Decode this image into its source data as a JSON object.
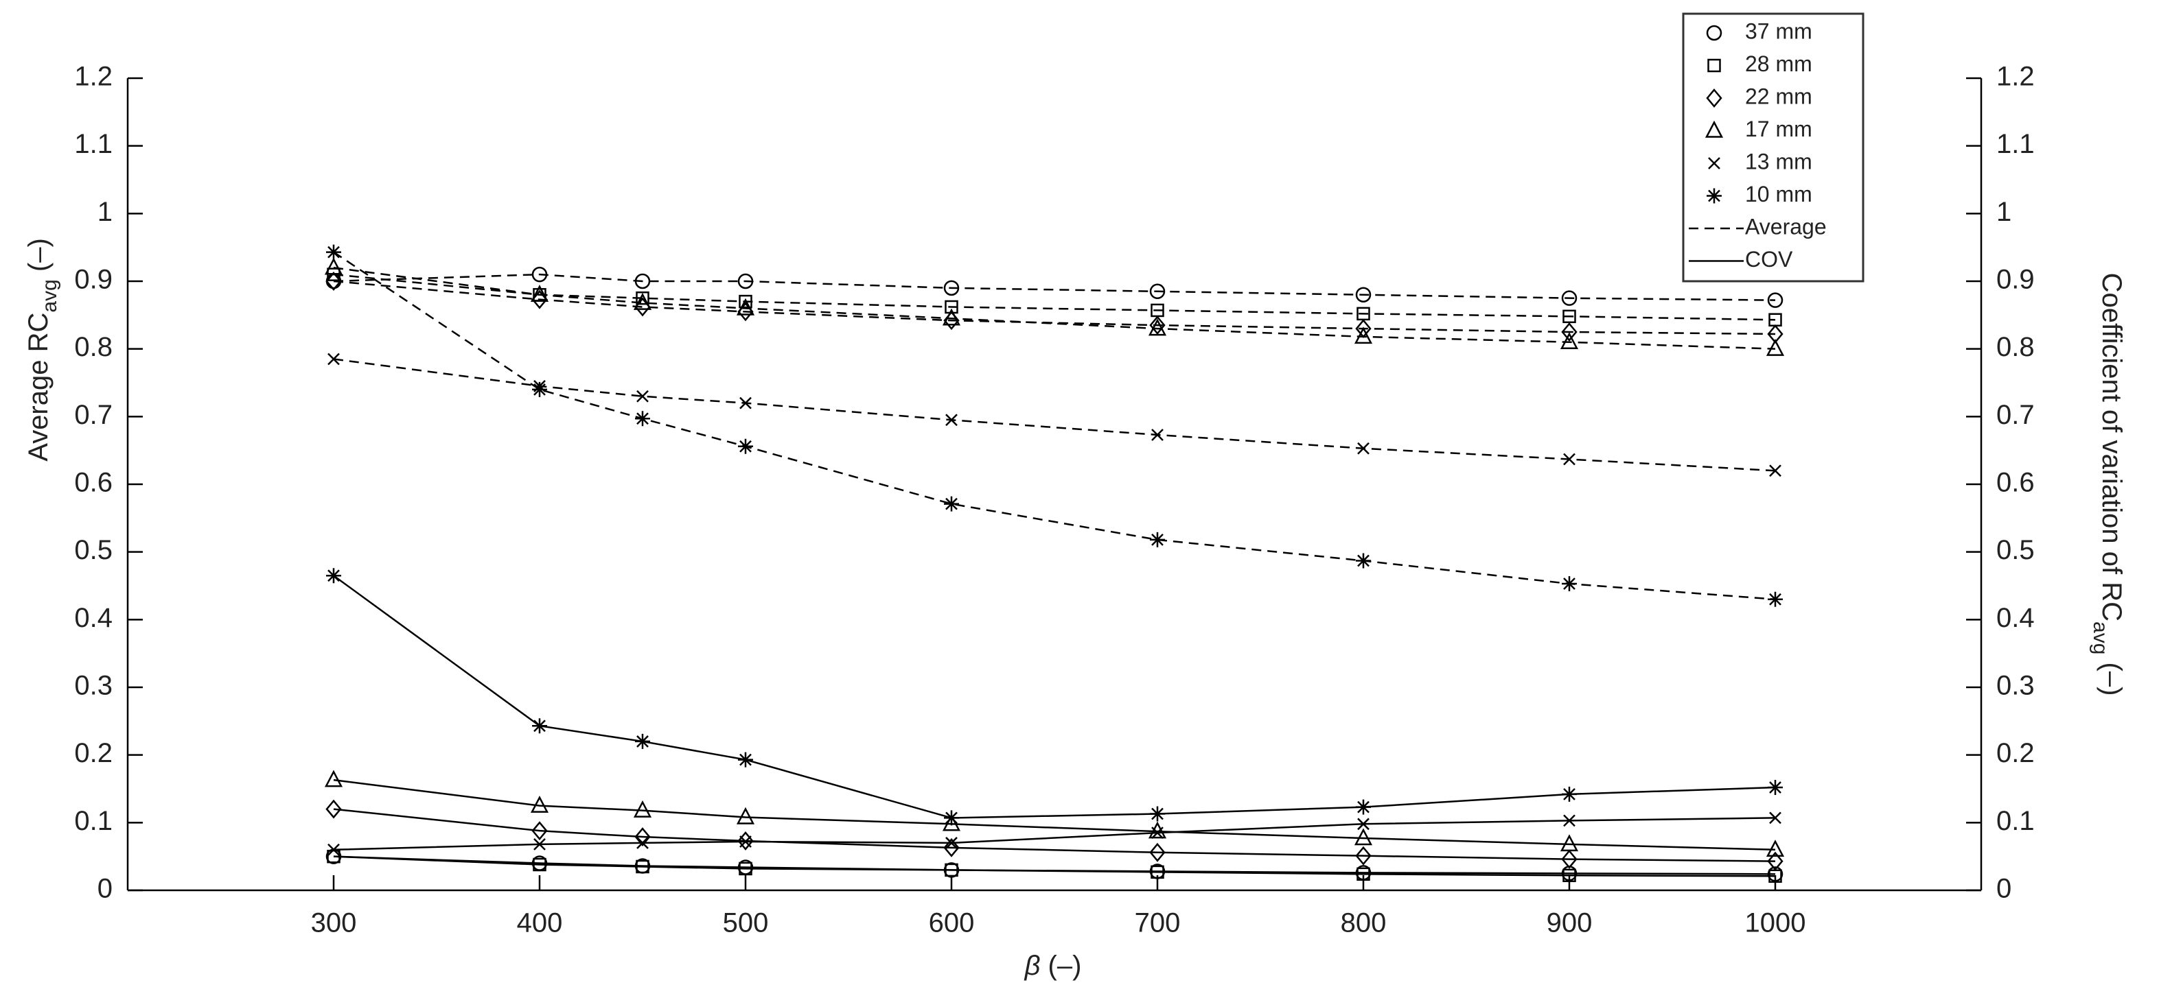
{
  "chart_data": {
    "type": "line",
    "x_label": [
      "β",
      " (–)"
    ],
    "y_label": [
      "Average RC",
      "avg",
      " (–)"
    ],
    "y2_label": [
      "Coefficient of variation of RC",
      "avg",
      " (–)"
    ],
    "x": [
      300,
      400,
      450,
      500,
      600,
      700,
      800,
      900,
      1000
    ],
    "xlim": [
      200,
      1100
    ],
    "xticks": [
      300,
      400,
      500,
      600,
      700,
      800,
      900,
      1000
    ],
    "ylim": [
      0,
      1.2
    ],
    "yticks": [
      0,
      0.1,
      0.2,
      0.3,
      0.4,
      0.5,
      0.6,
      0.7,
      0.8,
      0.9,
      1,
      1.1,
      1.2
    ],
    "y2lim": [
      0,
      1.2
    ],
    "y2ticks": [
      0,
      0.1,
      0.2,
      0.3,
      0.4,
      0.5,
      0.6,
      0.7,
      0.8,
      0.9,
      1,
      1.1,
      1.2
    ],
    "color": "#000000",
    "legend": "upper right",
    "line_styles": [
      {
        "name": "Average",
        "dash": "dashed",
        "axis": "y"
      },
      {
        "name": "COV",
        "dash": "solid",
        "axis": "y2"
      }
    ],
    "groups": [
      {
        "name": "37 mm",
        "marker": "circle",
        "values": [
          [
            0.9,
            0.91,
            0.9,
            0.9,
            0.89,
            0.885,
            0.88,
            0.875,
            0.872
          ],
          [
            0.05,
            0.04,
            0.036,
            0.034,
            0.03,
            0.028,
            0.026,
            0.025,
            0.024
          ]
        ]
      },
      {
        "name": "28 mm",
        "marker": "square",
        "values": [
          [
            0.91,
            0.88,
            0.875,
            0.87,
            0.862,
            0.857,
            0.852,
            0.848,
            0.843
          ],
          [
            0.05,
            0.038,
            0.035,
            0.032,
            0.03,
            0.027,
            0.024,
            0.022,
            0.021
          ]
        ]
      },
      {
        "name": "22 mm",
        "marker": "diamond",
        "values": [
          [
            0.9,
            0.873,
            0.862,
            0.855,
            0.842,
            0.835,
            0.83,
            0.825,
            0.822
          ],
          [
            0.12,
            0.088,
            0.079,
            0.073,
            0.063,
            0.056,
            0.051,
            0.046,
            0.043
          ]
        ]
      },
      {
        "name": "17 mm",
        "marker": "triangle",
        "values": [
          [
            0.92,
            0.88,
            0.868,
            0.86,
            0.845,
            0.83,
            0.818,
            0.81,
            0.8
          ],
          [
            0.163,
            0.125,
            0.118,
            0.108,
            0.098,
            0.087,
            0.077,
            0.068,
            0.06
          ]
        ]
      },
      {
        "name": "13 mm",
        "marker": "x",
        "values": [
          [
            0.785,
            0.745,
            0.73,
            0.72,
            0.695,
            0.673,
            0.653,
            0.637,
            0.62
          ],
          [
            0.06,
            0.068,
            0.07,
            0.072,
            0.07,
            0.085,
            0.098,
            0.103,
            0.107
          ]
        ]
      },
      {
        "name": "10 mm",
        "marker": "asterisk",
        "values": [
          [
            0.943,
            0.74,
            0.697,
            0.656,
            0.571,
            0.518,
            0.487,
            0.453,
            0.43
          ],
          [
            0.465,
            0.243,
            0.22,
            0.193,
            0.107,
            0.113,
            0.123,
            0.142,
            0.152
          ]
        ]
      }
    ]
  }
}
